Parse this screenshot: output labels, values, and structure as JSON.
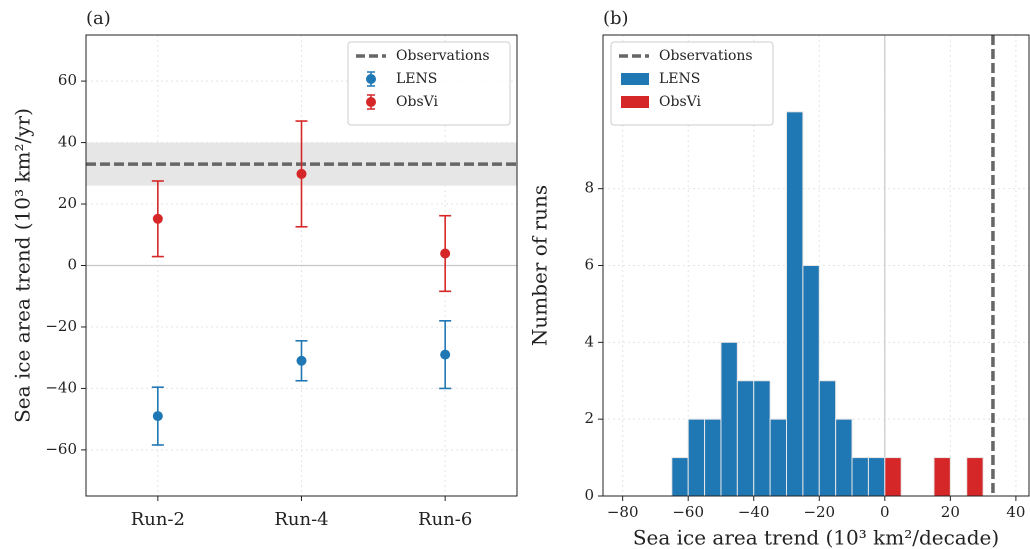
{
  "chart_data": [
    {
      "type": "errorbar",
      "annotation": "(a)",
      "ylabel": "Sea ice area trend (10³ km²/yr)",
      "categories": [
        "Run-2",
        "Run-4",
        "Run-6"
      ],
      "series": [
        {
          "name": "LENS",
          "color": "#1f77b4",
          "values": [
            -49,
            -31,
            -29
          ],
          "errors": [
            9.4,
            6.5,
            11
          ]
        },
        {
          "name": "ObsVi",
          "color": "#d62728",
          "values": [
            15.2,
            29.8,
            3.9
          ],
          "errors": [
            12.3,
            17.2,
            12.3
          ]
        }
      ],
      "reference": {
        "name": "Observations",
        "value": 33,
        "band": [
          26,
          40
        ],
        "color": "#666666"
      },
      "ylim": [
        -75,
        75
      ],
      "yticks": [
        {
          "value": -60,
          "label": "−60"
        },
        {
          "value": -40,
          "label": "−40"
        },
        {
          "value": -20,
          "label": "−20"
        },
        0,
        20,
        40,
        60
      ],
      "grid": true,
      "legend": "upper right"
    },
    {
      "type": "histogram",
      "annotation": "(b)",
      "xlabel": "Sea ice area trend (10³ km²/decade)",
      "ylabel": "Number of runs",
      "bins": [
        -65,
        -60,
        -55,
        -50,
        -45,
        -40,
        -35,
        -30,
        -25,
        -20,
        -15,
        -10,
        -5,
        0,
        5,
        10,
        15,
        20,
        25,
        30
      ],
      "series": [
        {
          "name": "LENS",
          "color": "#1f77b4",
          "values": [
            1,
            2,
            2,
            4,
            3,
            3,
            2,
            10,
            6,
            3,
            2,
            1,
            1,
            0,
            0,
            0,
            0,
            0,
            0
          ]
        },
        {
          "name": "ObsVi",
          "color": "#d62728",
          "values": [
            0,
            0,
            0,
            0,
            0,
            0,
            0,
            0,
            0,
            0,
            0,
            0,
            0,
            1,
            0,
            0,
            1,
            0,
            1
          ]
        }
      ],
      "reference": {
        "name": "Observations",
        "value": 33,
        "color": "#666666"
      },
      "xlim": [
        -86,
        44
      ],
      "xticks": [
        {
          "value": -80,
          "label": "−80"
        },
        {
          "value": -60,
          "label": "−60"
        },
        {
          "value": -40,
          "label": "−40"
        },
        {
          "value": -20,
          "label": "−20"
        },
        0,
        20,
        40
      ],
      "ylim": [
        0,
        12
      ],
      "yticks": [
        0,
        2,
        4,
        6,
        8
      ],
      "grid": true,
      "legend": "upper left"
    }
  ]
}
